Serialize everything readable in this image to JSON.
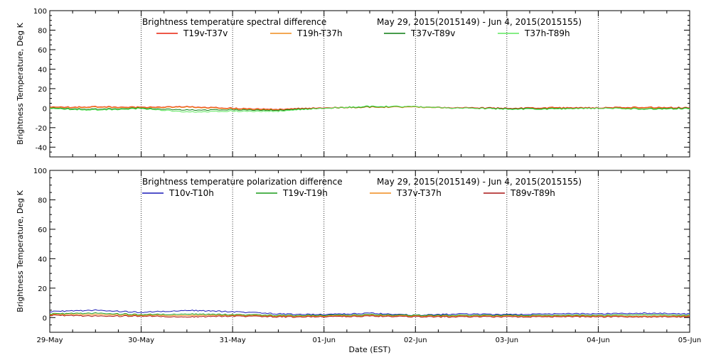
{
  "chart_data": [
    {
      "type": "line",
      "title": "Brightness temperature spectral difference",
      "date_range": "May 29, 2015(2015149) - Jun  4, 2015(2015155)",
      "ylabel": "Brightness Temperature, Deg K",
      "ylim": [
        -50,
        100
      ],
      "yticks": [
        -40,
        -20,
        0,
        20,
        40,
        60,
        80,
        100
      ],
      "xlim": [
        0,
        7
      ],
      "grid": "vertical-dotted",
      "legend": "top",
      "series": [
        {
          "name": "T19v-T37v",
          "color": "#e8200c",
          "x": [
            0,
            0.5,
            1,
            1.5,
            2,
            2.5,
            3,
            3.5,
            4,
            4.5,
            5,
            5.5,
            6,
            6.5,
            7
          ],
          "y": [
            1,
            1.5,
            1,
            1.5,
            0,
            -1,
            0.5,
            1.5,
            1.5,
            0.5,
            0,
            0.5,
            0.5,
            1,
            0.5
          ]
        },
        {
          "name": "T19h-T37h",
          "color": "#f08c1c",
          "x": [
            0,
            0.5,
            1,
            1.5,
            2,
            2.5,
            3,
            3.5,
            4,
            4.5,
            5,
            5.5,
            6,
            6.5,
            7
          ],
          "y": [
            0.5,
            1,
            0.5,
            1,
            -0.5,
            -1.5,
            0,
            1,
            1,
            0,
            -0.5,
            0,
            0,
            0.5,
            0
          ]
        },
        {
          "name": "T37v-T89v",
          "color": "#0a7c10",
          "x": [
            0,
            0.5,
            1,
            1.5,
            2,
            2.5,
            3,
            3.5,
            4,
            4.5,
            5,
            5.5,
            6,
            6.5,
            7
          ],
          "y": [
            0,
            -1,
            0,
            -2,
            -1.5,
            -2,
            0,
            1.5,
            1.5,
            0,
            -0.5,
            -0.5,
            0,
            -0.5,
            0
          ]
        },
        {
          "name": "T37h-T89h",
          "color": "#5ee85e",
          "x": [
            0,
            0.5,
            1,
            1.5,
            2,
            2.5,
            3,
            3.5,
            4,
            4.5,
            5,
            5.5,
            6,
            6.5,
            7
          ],
          "y": [
            -0.5,
            -2,
            -0.5,
            -4,
            -3,
            -3,
            0,
            2,
            1.5,
            0,
            -1,
            -1,
            0,
            -1,
            -0.5
          ]
        }
      ]
    },
    {
      "type": "line",
      "title": "Brightness temperature polarization difference",
      "date_range": "May 29, 2015(2015149) - Jun  4, 2015(2015155)",
      "ylabel": "Brightness Temperature, Deg K",
      "xlabel": "Date (EST)",
      "ylim": [
        -10,
        100
      ],
      "yticks": [
        0,
        20,
        40,
        60,
        80,
        100
      ],
      "xlim": [
        0,
        7
      ],
      "xticks": [
        "29-May",
        "30-May",
        "31-May",
        "01-Jun",
        "02-Jun",
        "03-Jun",
        "04-Jun",
        "05-Jun"
      ],
      "grid": "vertical-dotted",
      "legend": "top",
      "series": [
        {
          "name": "T10v-T10h",
          "color": "#1a1ab8",
          "x": [
            0,
            0.5,
            1,
            1.5,
            2,
            2.5,
            3,
            3.5,
            4,
            4.5,
            5,
            5.5,
            6,
            6.5,
            7
          ],
          "y": [
            4,
            5,
            3.5,
            5,
            4,
            2.5,
            2,
            3,
            1.5,
            2.5,
            2,
            2.5,
            2.5,
            3,
            2.5
          ]
        },
        {
          "name": "T19v-T19h",
          "color": "#1a9c1a",
          "x": [
            0,
            0.5,
            1,
            1.5,
            2,
            2.5,
            3,
            3.5,
            4,
            4.5,
            5,
            5.5,
            6,
            6.5,
            7
          ],
          "y": [
            2.5,
            3,
            2,
            2.5,
            2,
            1.5,
            1.5,
            2,
            1.5,
            1.5,
            1.5,
            1.5,
            1.5,
            2,
            1.5
          ]
        },
        {
          "name": "T37v-T37h",
          "color": "#f08c1c",
          "x": [
            0,
            0.5,
            1,
            1.5,
            2,
            2.5,
            3,
            3.5,
            4,
            4.5,
            5,
            5.5,
            6,
            6.5,
            7
          ],
          "y": [
            2,
            2,
            1.5,
            1.5,
            1.5,
            1,
            1,
            1.5,
            1,
            1,
            1,
            1,
            1,
            1,
            1
          ]
        },
        {
          "name": "T89v-T89h",
          "color": "#a81414",
          "x": [
            0,
            0.5,
            1,
            1.5,
            2,
            2.5,
            3,
            3.5,
            4,
            4.5,
            5,
            5.5,
            6,
            6.5,
            7
          ],
          "y": [
            1.5,
            1,
            1,
            0.5,
            1,
            0.5,
            0.5,
            1,
            0.5,
            0.5,
            0.5,
            0.5,
            0.5,
            0.5,
            0.5
          ]
        }
      ]
    }
  ]
}
